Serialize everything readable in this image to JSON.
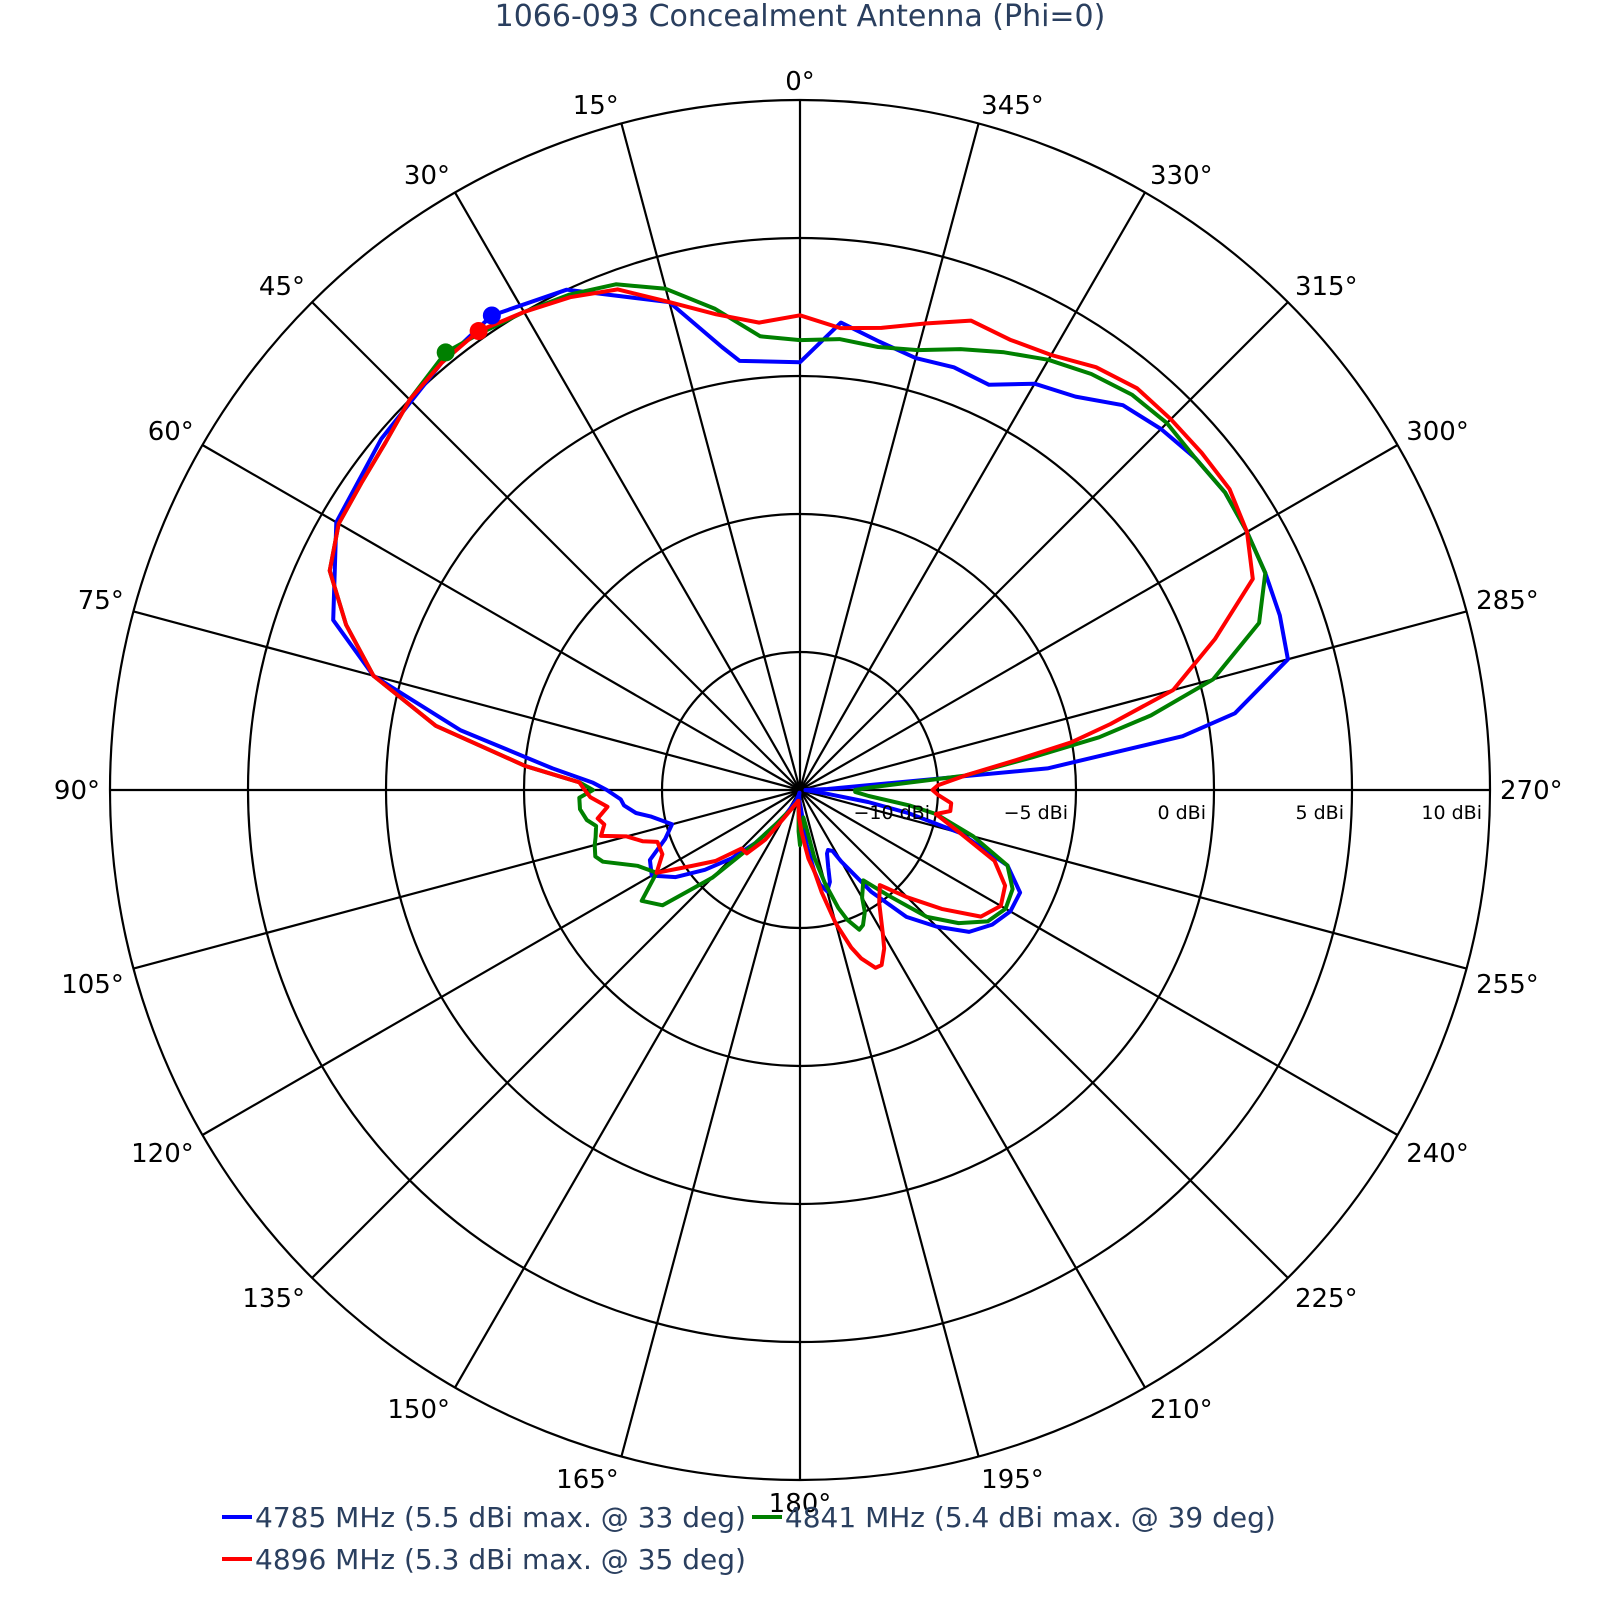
{
  "chart_data": {
    "type": "polar-line",
    "title": "1066-093 Concealment Antenna (Phi=0)",
    "angular_axis": {
      "direction": "counterclockwise",
      "rotation": "0° at top",
      "ticks": [
        "0°",
        "15°",
        "30°",
        "45°",
        "60°",
        "75°",
        "90°",
        "105°",
        "120°",
        "135°",
        "150°",
        "165°",
        "180°",
        "195°",
        "210°",
        "225°",
        "240°",
        "255°",
        "270°",
        "285°",
        "300°",
        "315°",
        "330°",
        "345°"
      ]
    },
    "radial_axis": {
      "range": [
        -15,
        10
      ],
      "unit": "dBi",
      "tick_values": [
        -10,
        -5,
        0,
        5,
        10
      ],
      "tick_labels": [
        "−10 dBi",
        "−5 dBi",
        "0 dBi",
        "5 dBi",
        "10 dBi"
      ],
      "grid_circles": [
        -10,
        -5,
        0,
        5,
        10
      ]
    },
    "grid": true,
    "legend_position": "bottom",
    "series": [
      {
        "name": "4785 MHz (5.5 dBi max. @ 33 deg)",
        "color": "#0000ff",
        "max": {
          "theta": 33,
          "r": 5.5
        },
        "theta": [
          0,
          8,
          10,
          15,
          25,
          33,
          40,
          50,
          60,
          70,
          75,
          80,
          85,
          88,
          90,
          93,
          95,
          98,
          100,
          105,
          110,
          115,
          120,
          125,
          130,
          135,
          140,
          145,
          150,
          155,
          160,
          165,
          168,
          170,
          172,
          175,
          178,
          180,
          182,
          185,
          187,
          190,
          192,
          195,
          198,
          200,
          203,
          205,
          208,
          210,
          215,
          220,
          225,
          230,
          235,
          240,
          245,
          250,
          255,
          258,
          260,
          262,
          265,
          268,
          270,
          272,
          275,
          278,
          280,
          285,
          290,
          295,
          300,
          305,
          310,
          315,
          320,
          325,
          330,
          335,
          340,
          345,
          350,
          355,
          360
        ],
        "r": [
          0.5,
          0.7,
          1.3,
          3.3,
          5.0,
          5.5,
          5.2,
          4.8,
          4.4,
          3.0,
          1.0,
          -2.5,
          -6.0,
          -7.5,
          -8.0,
          -8.5,
          -8.6,
          -9.0,
          -9.5,
          -10.2,
          -9.8,
          -9.0,
          -8.8,
          -9.5,
          -10.5,
          -11.5,
          -12.5,
          -13.5,
          -14.0,
          -14.4,
          -14.6,
          -14.8,
          -14.9,
          -14.9,
          -14.8,
          -14.7,
          -14.6,
          -14.5,
          -14.4,
          -14.0,
          -13.0,
          -12.0,
          -11.5,
          -11.2,
          -11.5,
          -12.0,
          -12.5,
          -12.6,
          -12.5,
          -12.0,
          -10.5,
          -9.0,
          -8.0,
          -7.0,
          -6.5,
          -6.2,
          -6.2,
          -7.0,
          -9.0,
          -11.0,
          -12.5,
          -14.0,
          -14.6,
          -14.8,
          -14.8,
          -14.0,
          -6.0,
          -1.0,
          1.0,
          3.3,
          3.5,
          3.6,
          3.7,
          3.8,
          3.7,
          3.5,
          3.2,
          2.4,
          2.0,
          1.2,
          1.3,
          1.2,
          1.5,
          2.0,
          0.5
        ]
      },
      {
        "name": "4841 MHz (5.4 dBi max. @ 39 deg)",
        "color": "#008000",
        "max": {
          "theta": 39,
          "r": 5.4
        },
        "theta": [
          0,
          5,
          10,
          15,
          20,
          25,
          30,
          35,
          39,
          45,
          50,
          55,
          60,
          65,
          70,
          75,
          80,
          85,
          88,
          90,
          92,
          95,
          98,
          100,
          103,
          105,
          108,
          110,
          115,
          120,
          125,
          130,
          135,
          140,
          145,
          150,
          155,
          160,
          165,
          170,
          172,
          175,
          178,
          180,
          182,
          185,
          187,
          190,
          192,
          195,
          198,
          200,
          203,
          205,
          208,
          210,
          215,
          220,
          225,
          230,
          235,
          240,
          245,
          250,
          255,
          260,
          262,
          265,
          268,
          270,
          272,
          275,
          278,
          280,
          282,
          285,
          290,
          295,
          300,
          305,
          310,
          315,
          320,
          325,
          330,
          335,
          340,
          345,
          350,
          355,
          360
        ],
        "r": [
          1.3,
          1.5,
          2.7,
          3.8,
          4.5,
          4.8,
          5.0,
          5.2,
          5.4,
          5.0,
          4.6,
          4.4,
          4.3,
          3.8,
          2.5,
          1.0,
          -1.6,
          -5.0,
          -7.0,
          -7.5,
          -7.0,
          -7.0,
          -7.2,
          -7.5,
          -7.4,
          -7.3,
          -7.2,
          -7.4,
          -8.5,
          -9.0,
          -8.0,
          -8.5,
          -10.5,
          -12.5,
          -13.5,
          -14.0,
          -14.2,
          -14.4,
          -14.5,
          -14.6,
          -14.6,
          -14.4,
          -13.5,
          -13.0,
          -13.5,
          -13.8,
          -14.0,
          -13.5,
          -12.5,
          -11.5,
          -10.5,
          -10.0,
          -9.5,
          -9.6,
          -10.0,
          -10.5,
          -11.0,
          -10.0,
          -8.5,
          -7.5,
          -6.7,
          -6.4,
          -6.5,
          -7.0,
          -8.5,
          -10.0,
          -11.0,
          -12.5,
          -13.0,
          -13.0,
          -12.5,
          -9.0,
          -6.5,
          -4.0,
          -2.0,
          0.5,
          2.7,
          3.6,
          3.7,
          3.8,
          3.7,
          3.8,
          3.7,
          3.4,
          3.0,
          2.5,
          2.0,
          1.5,
          1.3,
          1.4,
          1.3
        ]
      },
      {
        "name": "4896 MHz (5.3 dBi max. @ 35 deg)",
        "color": "#ff0000",
        "max": {
          "theta": 35,
          "r": 5.3
        },
        "theta": [
          0,
          5,
          10,
          15,
          20,
          25,
          30,
          35,
          40,
          45,
          50,
          55,
          60,
          65,
          70,
          75,
          80,
          85,
          88,
          90,
          92,
          95,
          98,
          100,
          103,
          105,
          108,
          110,
          115,
          120,
          125,
          130,
          135,
          140,
          145,
          150,
          155,
          160,
          165,
          170,
          172,
          175,
          178,
          180,
          182,
          185,
          187,
          190,
          192,
          195,
          198,
          200,
          203,
          205,
          208,
          210,
          215,
          220,
          225,
          230,
          235,
          240,
          245,
          250,
          255,
          260,
          262,
          265,
          268,
          270,
          272,
          275,
          278,
          280,
          282,
          285,
          290,
          295,
          300,
          305,
          310,
          315,
          320,
          325,
          330,
          335,
          340,
          345,
          350,
          355,
          360
        ],
        "r": [
          2.2,
          2.0,
          2.5,
          3.3,
          4.3,
          4.7,
          5.0,
          5.3,
          5.2,
          5.0,
          4.6,
          4.4,
          4.3,
          3.8,
          2.5,
          1.0,
          -1.6,
          -5.0,
          -7.0,
          -7.2,
          -7.4,
          -8.0,
          -7.6,
          -7.8,
          -7.6,
          -8.5,
          -9.0,
          -9.5,
          -9.5,
          -9.0,
          -10.2,
          -11.0,
          -12.0,
          -12.0,
          -12.8,
          -13.8,
          -14.2,
          -14.4,
          -14.5,
          -14.6,
          -14.6,
          -14.4,
          -14.0,
          -13.8,
          -13.5,
          -13.0,
          -12.5,
          -12.0,
          -11.2,
          -10.0,
          -9.0,
          -8.5,
          -8.0,
          -8.0,
          -8.5,
          -9.0,
          -10.0,
          -10.5,
          -9.5,
          -8.3,
          -7.0,
          -6.6,
          -6.8,
          -7.5,
          -9.0,
          -10.0,
          -9.5,
          -9.5,
          -10.0,
          -10.2,
          -10.0,
          -9.0,
          -7.0,
          -5.0,
          -3.5,
          -1.0,
          1.0,
          3.1,
          3.7,
          4.0,
          4.0,
          4.0,
          4.0,
          3.7,
          3.2,
          3.0,
          3.1,
          2.5,
          2.0,
          1.8,
          2.2
        ]
      }
    ]
  }
}
